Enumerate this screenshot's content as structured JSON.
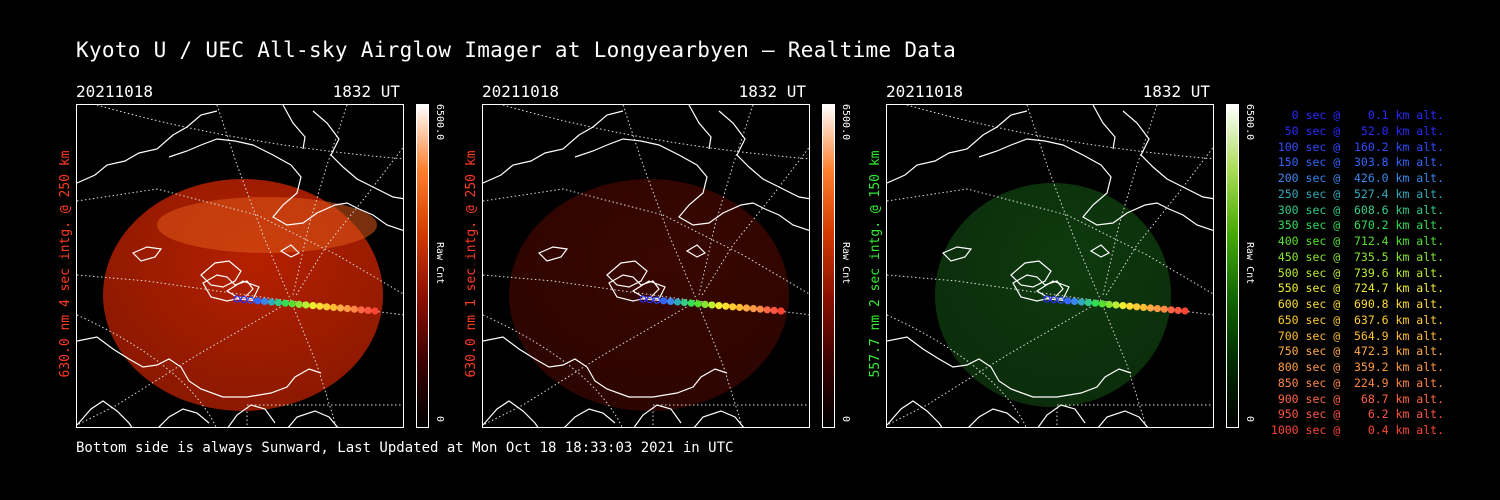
{
  "title": "Kyoto U / UEC All-sky Airglow Imager at Longyearbyen — Realtime Data",
  "footer": "Bottom side is always Sunward, Last Updated at Mon Oct 18 18:33:03 2021 in UTC",
  "panels": [
    {
      "date": "20211018",
      "time": "1832 UT",
      "ylabel": "630.0 nm 4 sec intg. @ 250 km",
      "ylabel_color": "#ff3b1f",
      "cbar_max": "6500.0",
      "cbar_min": "0",
      "cbar_label": "Raw Cnt",
      "cbar_gradient": [
        "#000000",
        "#3a0000",
        "#8a0f00",
        "#d23a00",
        "#ff8030",
        "#ffffff"
      ],
      "image_color": "#b52000"
    },
    {
      "date": "20211018",
      "time": "1832 UT",
      "ylabel": "630.0 nm 1 sec intg. @ 250 km",
      "ylabel_color": "#ff3b1f",
      "cbar_max": "6500.0",
      "cbar_min": "0",
      "cbar_label": "Raw Cnt",
      "cbar_gradient": [
        "#000000",
        "#3a0000",
        "#8a0f00",
        "#d23a00",
        "#ff8030",
        "#ffffff"
      ],
      "image_color": "#3a0600"
    },
    {
      "date": "20211018",
      "time": "1832 UT",
      "ylabel": "557.7 nm 2 sec intg. @ 150 km",
      "ylabel_color": "#33ee33",
      "cbar_max": "6500.0",
      "cbar_min": "0",
      "cbar_label": "Raw Cnt",
      "cbar_gradient": [
        "#000000",
        "#002a00",
        "#116600",
        "#44aa00",
        "#aadd55",
        "#ffffff"
      ],
      "image_color": "#0e3a0e"
    }
  ],
  "legend": [
    {
      "text": "   0 sec @    0.1 km alt.",
      "color": "#2a2aff"
    },
    {
      "text": "  50 sec @   52.0 km alt.",
      "color": "#2a2aff"
    },
    {
      "text": " 100 sec @  160.2 km alt.",
      "color": "#2f4cff"
    },
    {
      "text": " 150 sec @  303.8 km alt.",
      "color": "#3366ff"
    },
    {
      "text": " 200 sec @  426.0 km alt.",
      "color": "#3a88ee"
    },
    {
      "text": " 250 sec @  527.4 km alt.",
      "color": "#33aabb"
    },
    {
      "text": " 300 sec @  608.6 km alt.",
      "color": "#33cc88"
    },
    {
      "text": " 350 sec @  670.2 km alt.",
      "color": "#33dd55"
    },
    {
      "text": " 400 sec @  712.4 km alt.",
      "color": "#55e033"
    },
    {
      "text": " 450 sec @  735.5 km alt.",
      "color": "#88e633"
    },
    {
      "text": " 500 sec @  739.6 km alt.",
      "color": "#bbee33"
    },
    {
      "text": " 550 sec @  724.7 km alt.",
      "color": "#eeee33"
    },
    {
      "text": " 600 sec @  690.8 km alt.",
      "color": "#ffdd33"
    },
    {
      "text": " 650 sec @  637.6 km alt.",
      "color": "#ffcc33"
    },
    {
      "text": " 700 sec @  564.9 km alt.",
      "color": "#ffbb33"
    },
    {
      "text": " 750 sec @  472.3 km alt.",
      "color": "#ffaa44"
    },
    {
      "text": " 800 sec @  359.2 km alt.",
      "color": "#ff9944"
    },
    {
      "text": " 850 sec @  224.9 km alt.",
      "color": "#ff8844"
    },
    {
      "text": " 900 sec @   68.7 km alt.",
      "color": "#ff6644"
    },
    {
      "text": " 950 sec @    6.2 km alt.",
      "color": "#ff5544"
    },
    {
      "text": "1000 sec @    0.4 km alt.",
      "color": "#ff4433"
    }
  ]
}
